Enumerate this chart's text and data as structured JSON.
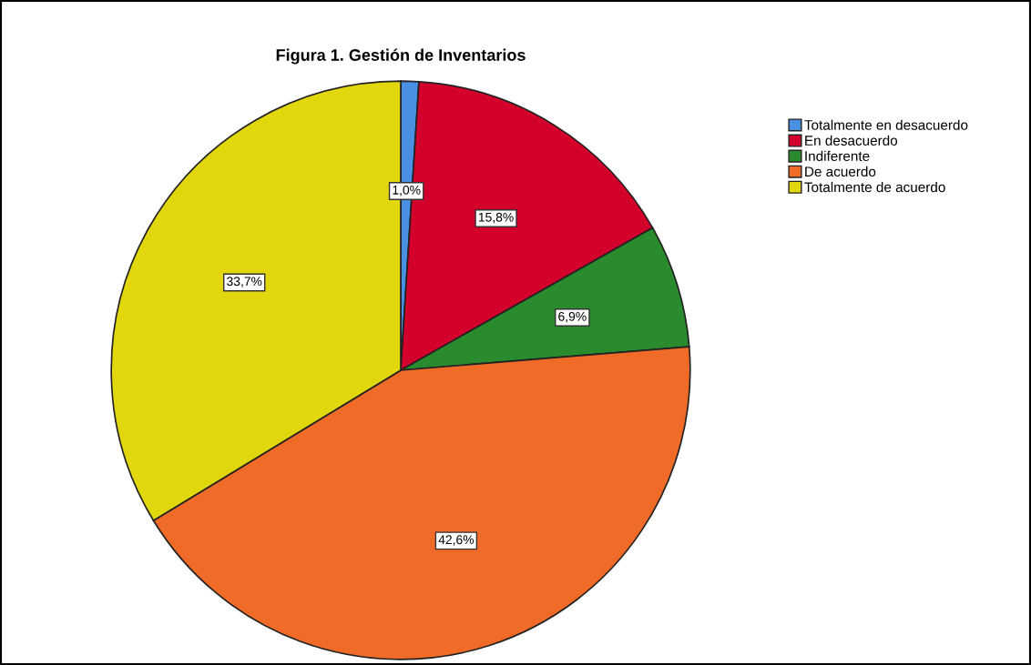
{
  "chart_data": {
    "type": "pie",
    "title": "Figura 1. Gestión de Inventarios",
    "categories": [
      "Totalmente en desacuerdo",
      "En desacuerdo",
      "Indiferente",
      "De acuerdo",
      "Totalmente de acuerdo"
    ],
    "values": [
      1.0,
      15.8,
      6.9,
      42.6,
      33.7
    ],
    "colors": [
      "#4a90e2",
      "#d4002c",
      "#2a8a2e",
      "#f06a28",
      "#e2d60c"
    ],
    "value_labels": [
      "1,0%",
      "15,8%",
      "6,9%",
      "42,6%",
      "33,7%"
    ],
    "legend": "top right"
  }
}
